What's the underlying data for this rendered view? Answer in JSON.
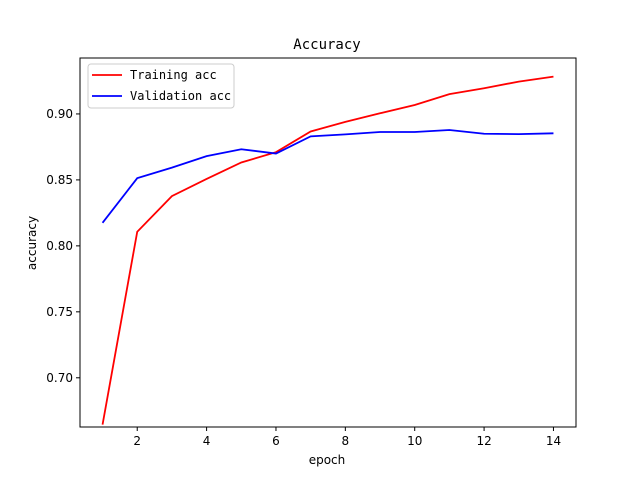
{
  "chart_data": {
    "type": "line",
    "title": "Accuracy",
    "xlabel": "epoch",
    "ylabel": "accuracy",
    "xlim": [
      0.35,
      14.65
    ],
    "ylim": [
      0.6627,
      0.9424
    ],
    "x_ticks": [
      2,
      4,
      6,
      8,
      10,
      12,
      14
    ],
    "y_ticks": [
      0.7,
      0.75,
      0.8,
      0.85,
      0.9
    ],
    "x_tick_labels": [
      "2",
      "4",
      "6",
      "8",
      "10",
      "12",
      "14"
    ],
    "y_tick_labels": [
      "0.70",
      "0.75",
      "0.80",
      "0.85",
      "0.90"
    ],
    "x": [
      1,
      2,
      3,
      4,
      5,
      6,
      7,
      8,
      9,
      10,
      11,
      12,
      13,
      14
    ],
    "series": [
      {
        "name": "Training acc",
        "color": "#ff0000",
        "values": [
          0.6645,
          0.8107,
          0.8377,
          0.8507,
          0.8632,
          0.871,
          0.8867,
          0.894,
          0.9005,
          0.9068,
          0.915,
          0.9195,
          0.9245,
          0.9283
        ]
      },
      {
        "name": "Validation acc",
        "color": "#0000ff",
        "values": [
          0.8175,
          0.8513,
          0.8593,
          0.868,
          0.8732,
          0.87,
          0.883,
          0.8845,
          0.8863,
          0.8863,
          0.8878,
          0.885,
          0.8847,
          0.8853
        ]
      }
    ],
    "legend_position": "top-left",
    "grid": false
  }
}
